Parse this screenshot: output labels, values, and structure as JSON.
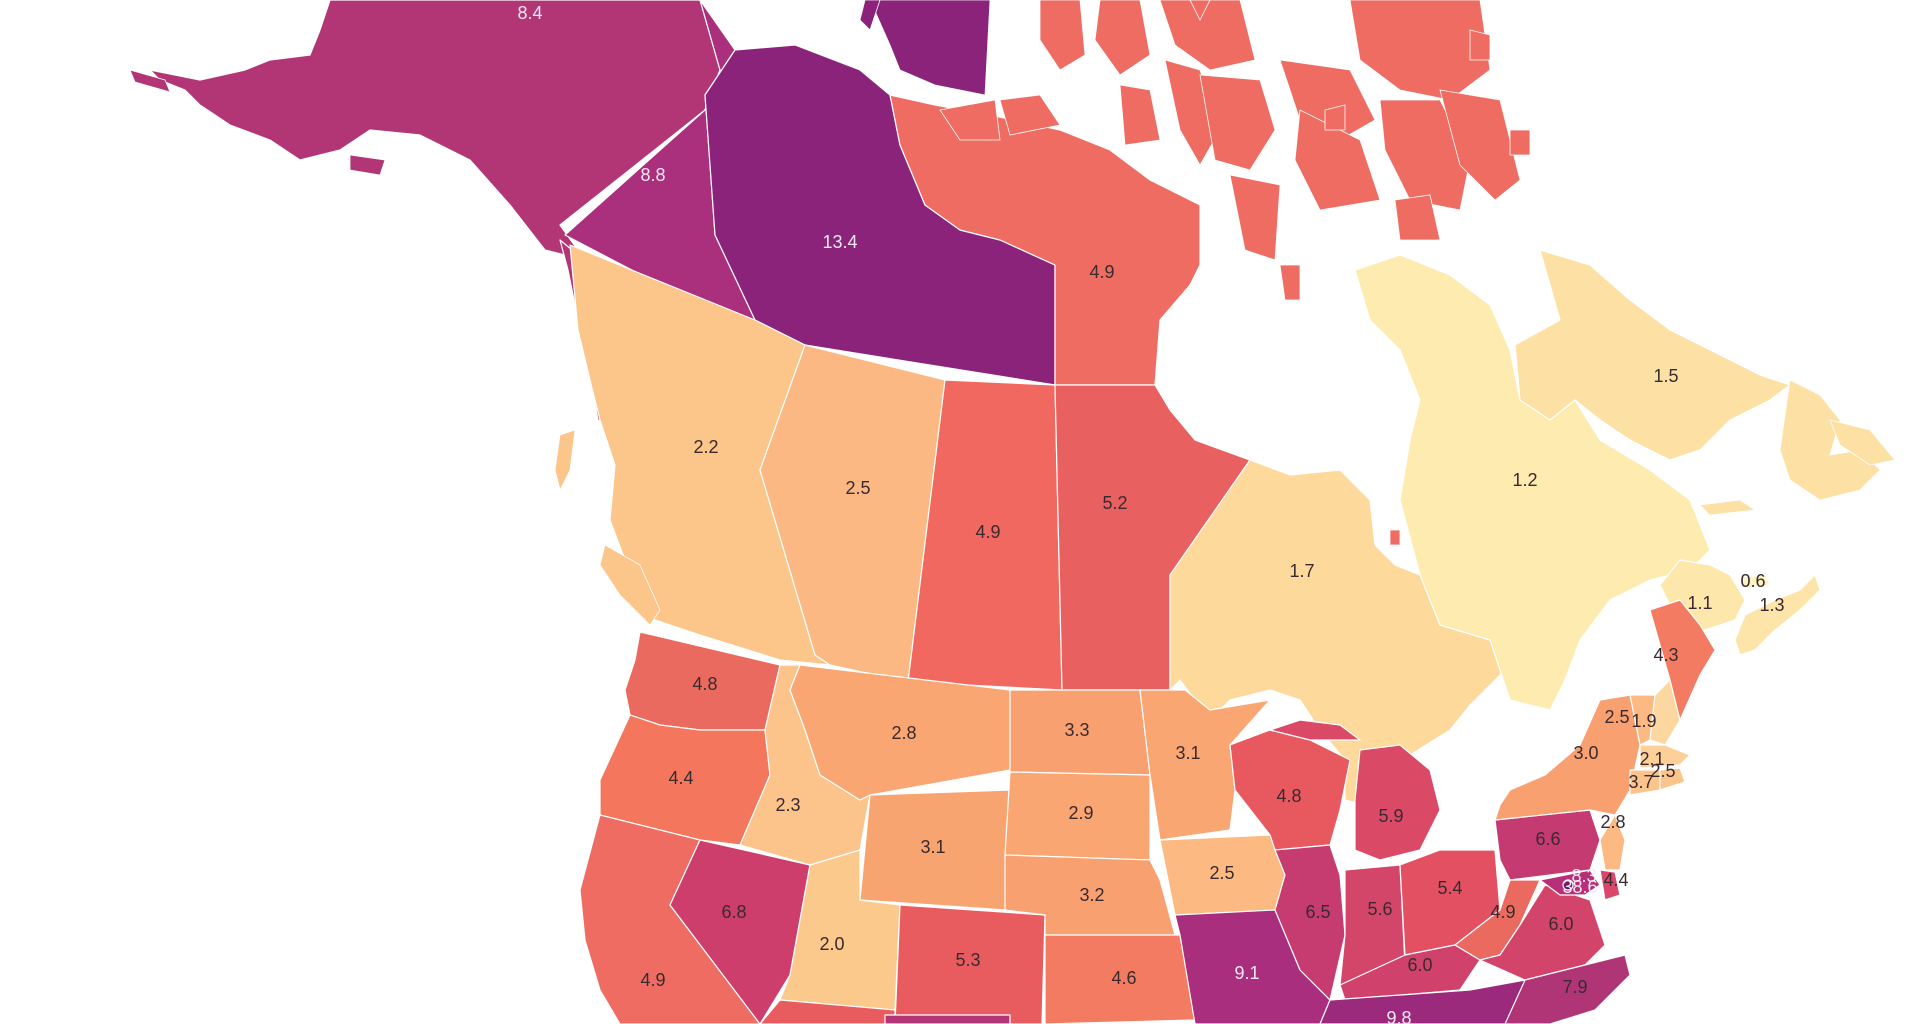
{
  "map_values": {
    "alaska": "8.4",
    "yukon": "8.8",
    "northwest_territories": "13.4",
    "nunavut": "4.9",
    "british_columbia": "2.2",
    "alberta": "2.5",
    "saskatchewan": "4.9",
    "manitoba": "5.2",
    "ontario": "1.7",
    "quebec": "1.2",
    "newfoundland_labrador": "1.5",
    "new_brunswick": "1.1",
    "prince_edward_island": "0.6",
    "nova_scotia": "1.3",
    "washington": "4.8",
    "oregon": "4.4",
    "california": "4.9",
    "idaho": "2.3",
    "nevada": "6.8",
    "montana": "2.8",
    "wyoming": "3.1",
    "utah": "2.0",
    "colorado": "5.3",
    "north_dakota": "3.3",
    "south_dakota": "2.9",
    "nebraska": "3.2",
    "kansas": "4.6",
    "minnesota": "3.1",
    "iowa": "2.5",
    "missouri": "9.1",
    "wisconsin": "4.8",
    "illinois": "6.5",
    "michigan": "5.9",
    "indiana": "5.6",
    "ohio": "5.4",
    "kentucky": "6.0",
    "tennessee": "9.8",
    "west_virginia": "4.9",
    "virginia": "6.0",
    "north_carolina": "7.9",
    "pennsylvania": "6.6",
    "new_york": "3.0",
    "maine": "4.3",
    "vermont": "2.5",
    "new_hampshire": "1.9",
    "massachusetts": "2.1",
    "connecticut": "3.7",
    "rhode_island": "2.5",
    "new_jersey": "2.8",
    "maryland": "8.3",
    "delaware": "4.4",
    "district_of_columbia": "38.6"
  },
  "colors": {
    "scale_lowest": "#fdebb0",
    "scale_low": "#fdd89a",
    "scale_mid_low": "#fcc58a",
    "scale_mid": "#f9a673",
    "scale_mid_high": "#f27a60",
    "scale_high": "#e6566a",
    "scale_higher": "#c83c72",
    "scale_very_high": "#a92f7e",
    "scale_highest": "#882378",
    "background": "#ffffff"
  }
}
